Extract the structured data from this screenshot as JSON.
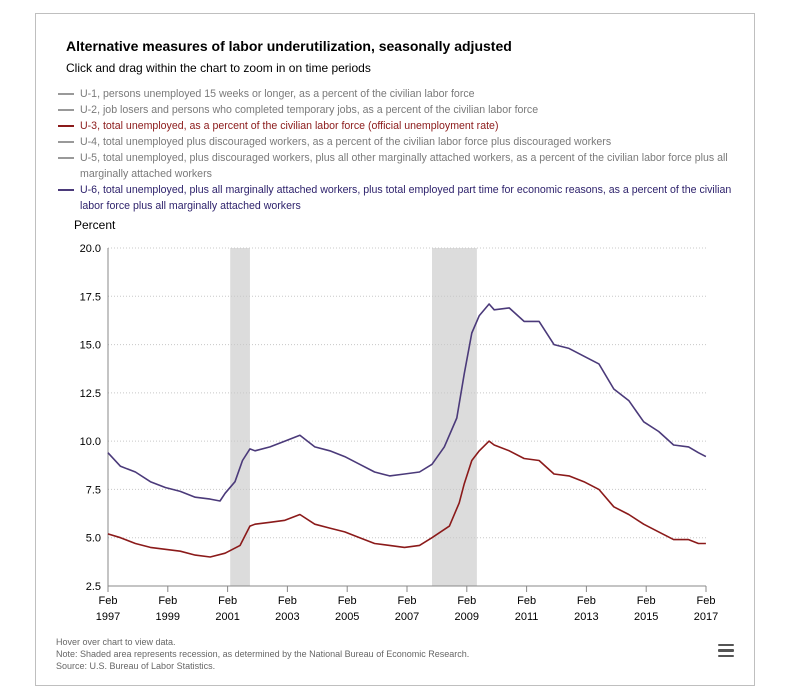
{
  "title": "Alternative measures of labor underutilization, seasonally adjusted",
  "subtitle": "Click and drag within the chart to zoom in on time periods",
  "legend": [
    {
      "key": "U1",
      "label": "U-1, persons unemployed 15 weeks or longer, as a percent of the civilian labor force",
      "color": "#999999",
      "text_color": "#7a7a7a"
    },
    {
      "key": "U2",
      "label": "U-2, job losers and persons who completed temporary jobs, as a percent of the civilian labor force",
      "color": "#999999",
      "text_color": "#7a7a7a"
    },
    {
      "key": "U3",
      "label": "U-3, total unemployed, as a percent of the civilian labor force (official unemployment rate)",
      "color": "#8b1a1a",
      "text_color": "#8b1a1a"
    },
    {
      "key": "U4",
      "label": "U-4, total unemployed plus discouraged workers, as a percent of the civilian labor force plus discouraged workers",
      "color": "#999999",
      "text_color": "#7a7a7a"
    },
    {
      "key": "U5",
      "label": "U-5, total unemployed, plus discouraged workers, plus all other marginally attached workers, as a percent of the civilian labor force plus all marginally attached workers",
      "color": "#999999",
      "text_color": "#7a7a7a"
    },
    {
      "key": "U6",
      "label": "U-6, total unemployed, plus all marginally attached workers, plus total employed part time for economic reasons, as a percent of the civilian labor force plus all marginally attached workers",
      "color": "#4b3a7a",
      "text_color": "#2b1f6a"
    }
  ],
  "footer": {
    "hover": "Hover over chart to view data.",
    "note": "Note: Shaded area represents recession, as determined by the National Bureau of Economic Research.",
    "source": "Source: U.S. Bureau of Labor Statistics."
  },
  "menu_icon": "hamburger-menu-icon",
  "chart_data": {
    "type": "line",
    "ylabel": "Percent",
    "ylim": [
      2.5,
      20.0
    ],
    "yticks": [
      "2.5",
      "5.0",
      "7.5",
      "10.0",
      "12.5",
      "15.0",
      "17.5",
      "20.0"
    ],
    "xlim": [
      1997.083,
      2017.083
    ],
    "xticks": [
      {
        "month": "Feb",
        "year": "1997"
      },
      {
        "month": "Feb",
        "year": "1999"
      },
      {
        "month": "Feb",
        "year": "2001"
      },
      {
        "month": "Feb",
        "year": "2003"
      },
      {
        "month": "Feb",
        "year": "2005"
      },
      {
        "month": "Feb",
        "year": "2007"
      },
      {
        "month": "Feb",
        "year": "2009"
      },
      {
        "month": "Feb",
        "year": "2011"
      },
      {
        "month": "Feb",
        "year": "2013"
      },
      {
        "month": "Feb",
        "year": "2015"
      },
      {
        "month": "Feb",
        "year": "2017"
      }
    ],
    "recessions": [
      [
        2001.17,
        2001.83
      ],
      [
        2007.92,
        2009.42
      ]
    ],
    "grid": "dotted horizontal",
    "series": [
      {
        "name": "U-3",
        "color": "#8b1a1a",
        "points": [
          [
            1997.08,
            5.2
          ],
          [
            1997.5,
            5.0
          ],
          [
            1998.0,
            4.7
          ],
          [
            1998.5,
            4.5
          ],
          [
            1999.0,
            4.4
          ],
          [
            1999.5,
            4.3
          ],
          [
            2000.0,
            4.1
          ],
          [
            2000.5,
            4.0
          ],
          [
            2001.0,
            4.2
          ],
          [
            2001.5,
            4.6
          ],
          [
            2001.83,
            5.6
          ],
          [
            2002.0,
            5.7
          ],
          [
            2002.5,
            5.8
          ],
          [
            2003.0,
            5.9
          ],
          [
            2003.5,
            6.2
          ],
          [
            2004.0,
            5.7
          ],
          [
            2004.5,
            5.5
          ],
          [
            2005.0,
            5.3
          ],
          [
            2005.5,
            5.0
          ],
          [
            2006.0,
            4.7
          ],
          [
            2006.5,
            4.6
          ],
          [
            2007.0,
            4.5
          ],
          [
            2007.5,
            4.6
          ],
          [
            2007.92,
            5.0
          ],
          [
            2008.5,
            5.6
          ],
          [
            2008.83,
            6.8
          ],
          [
            2009.0,
            7.8
          ],
          [
            2009.25,
            9.0
          ],
          [
            2009.5,
            9.5
          ],
          [
            2009.83,
            10.0
          ],
          [
            2010.0,
            9.8
          ],
          [
            2010.5,
            9.5
          ],
          [
            2011.0,
            9.1
          ],
          [
            2011.5,
            9.0
          ],
          [
            2012.0,
            8.3
          ],
          [
            2012.5,
            8.2
          ],
          [
            2013.0,
            7.9
          ],
          [
            2013.5,
            7.5
          ],
          [
            2014.0,
            6.6
          ],
          [
            2014.5,
            6.2
          ],
          [
            2015.0,
            5.7
          ],
          [
            2015.5,
            5.3
          ],
          [
            2016.0,
            4.9
          ],
          [
            2016.5,
            4.9
          ],
          [
            2016.83,
            4.7
          ],
          [
            2017.08,
            4.7
          ]
        ]
      },
      {
        "name": "U-6",
        "color": "#4b3a7a",
        "points": [
          [
            1997.08,
            9.4
          ],
          [
            1997.5,
            8.7
          ],
          [
            1998.0,
            8.4
          ],
          [
            1998.5,
            7.9
          ],
          [
            1999.0,
            7.6
          ],
          [
            1999.5,
            7.4
          ],
          [
            2000.0,
            7.1
          ],
          [
            2000.5,
            7.0
          ],
          [
            2000.83,
            6.9
          ],
          [
            2001.0,
            7.3
          ],
          [
            2001.33,
            7.9
          ],
          [
            2001.58,
            9.0
          ],
          [
            2001.83,
            9.6
          ],
          [
            2002.0,
            9.5
          ],
          [
            2002.5,
            9.7
          ],
          [
            2003.0,
            10.0
          ],
          [
            2003.5,
            10.3
          ],
          [
            2004.0,
            9.7
          ],
          [
            2004.5,
            9.5
          ],
          [
            2005.0,
            9.2
          ],
          [
            2005.5,
            8.8
          ],
          [
            2006.0,
            8.4
          ],
          [
            2006.5,
            8.2
          ],
          [
            2007.0,
            8.3
          ],
          [
            2007.5,
            8.4
          ],
          [
            2007.92,
            8.8
          ],
          [
            2008.33,
            9.7
          ],
          [
            2008.75,
            11.2
          ],
          [
            2009.0,
            13.5
          ],
          [
            2009.25,
            15.6
          ],
          [
            2009.5,
            16.5
          ],
          [
            2009.83,
            17.1
          ],
          [
            2010.0,
            16.8
          ],
          [
            2010.5,
            16.9
          ],
          [
            2011.0,
            16.2
          ],
          [
            2011.5,
            16.2
          ],
          [
            2012.0,
            15.0
          ],
          [
            2012.5,
            14.8
          ],
          [
            2013.0,
            14.4
          ],
          [
            2013.5,
            14.0
          ],
          [
            2014.0,
            12.7
          ],
          [
            2014.5,
            12.1
          ],
          [
            2015.0,
            11.0
          ],
          [
            2015.5,
            10.5
          ],
          [
            2016.0,
            9.8
          ],
          [
            2016.5,
            9.7
          ],
          [
            2016.83,
            9.4
          ],
          [
            2017.08,
            9.2
          ]
        ]
      }
    ]
  }
}
